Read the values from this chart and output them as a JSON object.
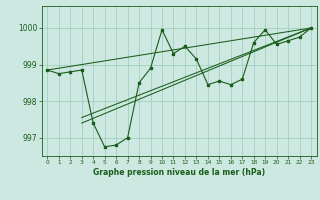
{
  "title": "Graphe pression niveau de la mer (hPa)",
  "bg_color": "#cce8e0",
  "grid_color": "#99ccbb",
  "line_color": "#1a5c1a",
  "xlim": [
    -0.5,
    23.5
  ],
  "ylim": [
    996.5,
    1000.6
  ],
  "yticks": [
    997,
    998,
    999,
    1000
  ],
  "xticks": [
    0,
    1,
    2,
    3,
    4,
    5,
    6,
    7,
    8,
    9,
    10,
    11,
    12,
    13,
    14,
    15,
    16,
    17,
    18,
    19,
    20,
    21,
    22,
    23
  ],
  "series1_x": [
    0,
    1,
    2,
    3,
    4,
    5,
    6,
    7,
    8,
    9,
    10,
    11,
    12,
    13,
    14,
    15,
    16,
    17,
    18,
    19,
    20,
    21,
    22,
    23
  ],
  "series1_y": [
    998.85,
    998.75,
    998.8,
    998.85,
    997.4,
    996.75,
    996.8,
    997.0,
    998.5,
    998.9,
    999.95,
    999.3,
    999.5,
    999.15,
    998.45,
    998.55,
    998.45,
    998.6,
    999.6,
    999.95,
    999.55,
    999.65,
    999.75,
    1000.0
  ],
  "trend_lines": [
    {
      "x": [
        0,
        23
      ],
      "y": [
        998.85,
        1000.0
      ]
    },
    {
      "x": [
        3,
        23
      ],
      "y": [
        997.4,
        1000.0
      ]
    },
    {
      "x": [
        3,
        23
      ],
      "y": [
        997.55,
        1000.0
      ]
    }
  ],
  "xlabel_fontsize": 5.5,
  "ytick_fontsize": 5.5,
  "xtick_fontsize": 4.2
}
